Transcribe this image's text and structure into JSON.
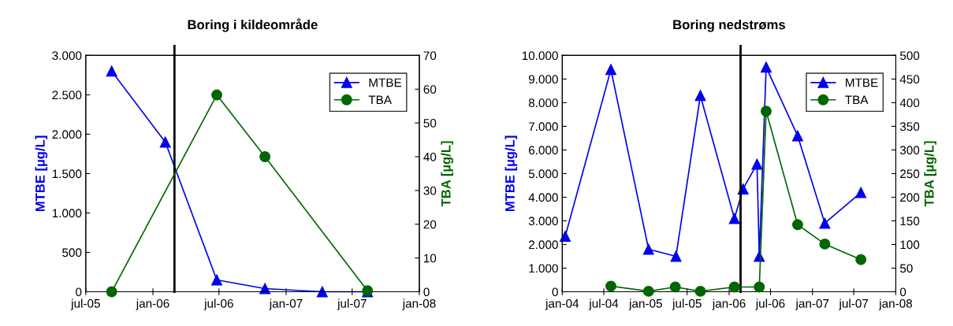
{
  "chart_data": [
    {
      "type": "line",
      "title": "Boring i kildeområde",
      "ylabel": "MTBE [µg/L]",
      "y2label": "TBA [µg/L]",
      "xlim": [
        "2005-07-01",
        "2008-01-01"
      ],
      "xticks": [
        {
          "value": "2005-07-01",
          "label": "jul-05"
        },
        {
          "value": "2006-01-01",
          "label": "jan-06"
        },
        {
          "value": "2006-07-01",
          "label": "jul-06"
        },
        {
          "value": "2007-01-01",
          "label": "jan-07"
        },
        {
          "value": "2007-07-01",
          "label": "jul-07"
        },
        {
          "value": "2008-01-01",
          "label": "jan-08"
        }
      ],
      "ylim": [
        0,
        3000
      ],
      "yticks": [
        {
          "value": 0,
          "label": "0"
        },
        {
          "value": 500,
          "label": "500"
        },
        {
          "value": 1000,
          "label": "1.000"
        },
        {
          "value": 1500,
          "label": "1.500"
        },
        {
          "value": 2000,
          "label": "2.000"
        },
        {
          "value": 2500,
          "label": "2.500"
        },
        {
          "value": 3000,
          "label": "3.000"
        }
      ],
      "y2lim": [
        0,
        70
      ],
      "y2ticks": [
        0,
        10,
        20,
        30,
        40,
        50,
        60,
        70
      ],
      "series": [
        {
          "name": "MTBE",
          "color": "#0000ee",
          "marker": "triangle",
          "x": [
            "2005-09-10",
            "2006-02-04",
            "2006-06-25",
            "2006-11-04",
            "2007-04-10",
            "2007-08-12"
          ],
          "values": [
            2800,
            1900,
            150,
            40,
            0,
            0
          ]
        },
        {
          "name": "TBA",
          "color": "#006600",
          "marker": "circle",
          "axis": "y2",
          "x": [
            "2005-09-10",
            "2006-06-25",
            "2006-11-04",
            "2007-08-12"
          ],
          "values": [
            0,
            58.3,
            40,
            0.3
          ]
        }
      ],
      "ref_lines": [
        {
          "axis": "x",
          "value": "2006-03-01",
          "color": "#000000"
        }
      ],
      "legend": "top right",
      "grid": false
    },
    {
      "type": "line",
      "title": "Boring nedstrøms",
      "ylabel": "MTBE [µg/L]",
      "y2label": "TBA [µg/L]",
      "xlim": [
        "2004-01-01",
        "2008-01-01"
      ],
      "xticks": [
        {
          "value": "2004-01-01",
          "label": "jan-04"
        },
        {
          "value": "2004-07-01",
          "label": "jul-04"
        },
        {
          "value": "2005-01-01",
          "label": "jan-05"
        },
        {
          "value": "2005-07-01",
          "label": "jul-05"
        },
        {
          "value": "2006-01-01",
          "label": "jan-06"
        },
        {
          "value": "2006-07-01",
          "label": "jul-06"
        },
        {
          "value": "2007-01-01",
          "label": "jan-07"
        },
        {
          "value": "2007-07-01",
          "label": "jul-07"
        },
        {
          "value": "2008-01-01",
          "label": "jan-08"
        }
      ],
      "ylim": [
        0,
        10000
      ],
      "yticks": [
        {
          "value": 0,
          "label": "0"
        },
        {
          "value": 1000,
          "label": "1.000"
        },
        {
          "value": 2000,
          "label": "2.000"
        },
        {
          "value": 3000,
          "label": "3.000"
        },
        {
          "value": 4000,
          "label": "4.000"
        },
        {
          "value": 5000,
          "label": "5.000"
        },
        {
          "value": 6000,
          "label": "6.000"
        },
        {
          "value": 7000,
          "label": "7.000"
        },
        {
          "value": 8000,
          "label": "8.000"
        },
        {
          "value": 9000,
          "label": "9.000"
        },
        {
          "value": 10000,
          "label": "10.000"
        }
      ],
      "y2lim": [
        0,
        500
      ],
      "y2ticks": [
        0,
        50,
        100,
        150,
        200,
        250,
        300,
        350,
        400,
        450,
        500
      ],
      "series": [
        {
          "name": "MTBE",
          "color": "#0000ee",
          "marker": "triangle",
          "x": [
            "2004-01-14",
            "2004-08-01",
            "2005-01-13",
            "2005-05-13",
            "2005-08-28",
            "2006-01-24",
            "2006-03-03",
            "2006-05-03",
            "2006-05-13",
            "2006-06-12",
            "2006-10-28",
            "2007-02-24",
            "2007-08-01"
          ],
          "values": [
            2350,
            9400,
            1800,
            1500,
            8300,
            3100,
            4350,
            5400,
            1500,
            9500,
            6600,
            2900,
            4200
          ]
        },
        {
          "name": "TBA",
          "color": "#006600",
          "marker": "circle",
          "axis": "y2",
          "x": [
            "2004-08-01",
            "2005-01-13",
            "2005-05-10",
            "2005-08-28",
            "2006-01-24",
            "2006-05-13",
            "2006-06-12",
            "2006-10-28",
            "2007-02-24",
            "2007-08-01"
          ],
          "values": [
            12,
            1,
            10,
            1,
            10,
            10,
            382,
            142,
            101,
            68
          ]
        }
      ],
      "ref_lines": [
        {
          "axis": "x",
          "value": "2006-02-20",
          "color": "#000000"
        }
      ],
      "legend": "top right",
      "grid": false
    }
  ]
}
